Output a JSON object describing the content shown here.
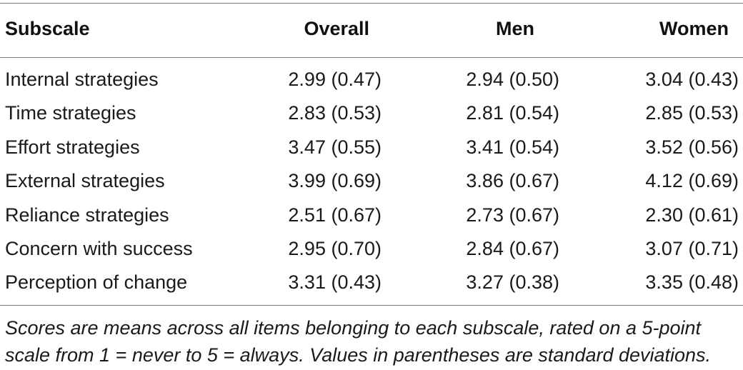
{
  "table": {
    "headers": [
      "Subscale",
      "Overall",
      "Men",
      "Women"
    ],
    "rows": [
      [
        "Internal strategies",
        "2.99 (0.47)",
        "2.94 (0.50)",
        "3.04 (0.43)"
      ],
      [
        "Time strategies",
        "2.83 (0.53)",
        "2.81 (0.54)",
        "2.85 (0.53)"
      ],
      [
        "Effort strategies",
        "3.47 (0.55)",
        "3.41 (0.54)",
        "3.52 (0.56)"
      ],
      [
        "External strategies",
        "3.99 (0.69)",
        "3.86 (0.67)",
        "4.12 (0.69)"
      ],
      [
        "Reliance strategies",
        "2.51 (0.67)",
        "2.73 (0.67)",
        "2.30 (0.61)"
      ],
      [
        "Concern with success",
        "2.95 (0.70)",
        "2.84 (0.67)",
        "3.07 (0.71)"
      ],
      [
        "Perception of change",
        "3.31 (0.43)",
        "3.27 (0.38)",
        "3.35 (0.48)"
      ]
    ]
  },
  "footnote": {
    "line1": "Scores are means across all items belonging to each subscale, rated on a 5-point",
    "line2": "scale from 1 = never to 5 = always. Values in parentheses are standard deviations."
  }
}
